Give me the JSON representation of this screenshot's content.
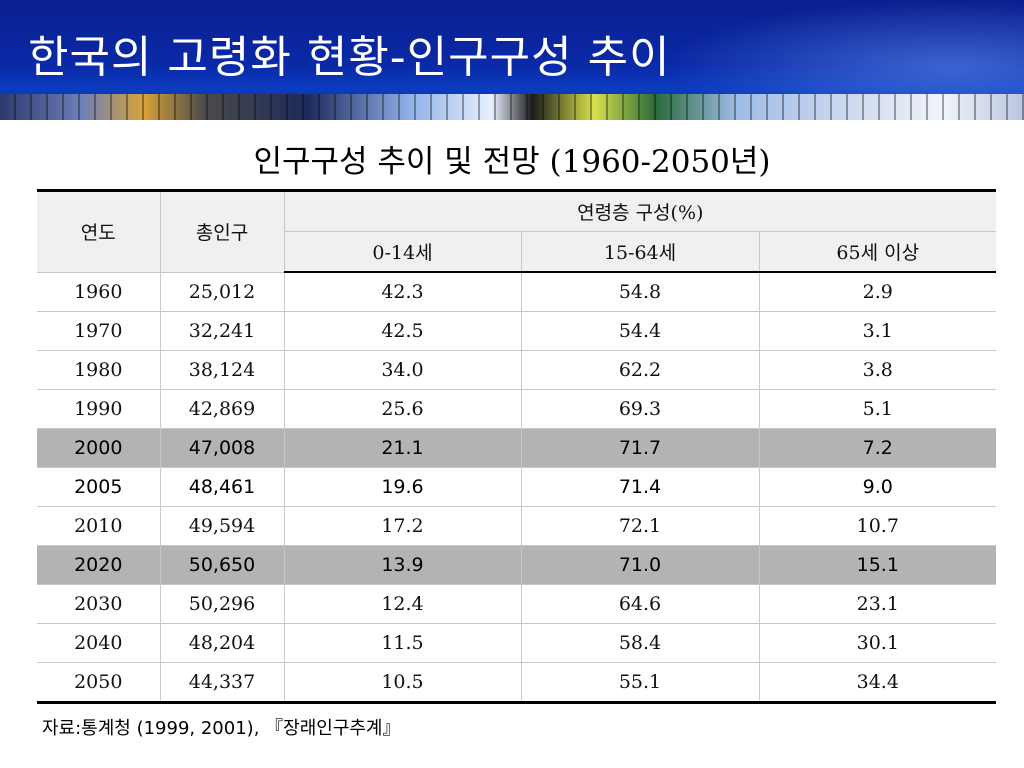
{
  "slide": {
    "title": "한국의 고령화 현황-인구구성 추이"
  },
  "table": {
    "title": "인구구성 추이 및 전망 (1960-2050년)",
    "headers": {
      "year": "연도",
      "total": "총인구",
      "age_group": "연령층 구성(%)",
      "age_0_14": "0-14세",
      "age_15_64": "15-64세",
      "age_65_plus": "65세 이상"
    },
    "rows": [
      {
        "year": "1960",
        "total": "25,012",
        "a": "42.3",
        "b": "54.8",
        "c": "2.9"
      },
      {
        "year": "1970",
        "total": "32,241",
        "a": "42.5",
        "b": "54.4",
        "c": "3.1"
      },
      {
        "year": "1980",
        "total": "38,124",
        "a": "34.0",
        "b": "62.2",
        "c": "3.8"
      },
      {
        "year": "1990",
        "total": "42,869",
        "a": "25.6",
        "b": "69.3",
        "c": "5.1"
      },
      {
        "year": "2000",
        "total": "47,008",
        "a": "21.1",
        "b": "71.7",
        "c": "7.2"
      },
      {
        "year": "2005",
        "total": "48,461",
        "a": "19.6",
        "b": "71.4",
        "c": "9.0"
      },
      {
        "year": "2010",
        "total": "49,594",
        "a": "17.2",
        "b": "72.1",
        "c": "10.7"
      },
      {
        "year": "2020",
        "total": "50,650",
        "a": "13.9",
        "b": "71.0",
        "c": "15.1"
      },
      {
        "year": "2030",
        "total": "50,296",
        "a": "12.4",
        "b": "64.6",
        "c": "23.1"
      },
      {
        "year": "2040",
        "total": "48,204",
        "a": "11.5",
        "b": "58.4",
        "c": "30.1"
      },
      {
        "year": "2050",
        "total": "44,337",
        "a": "10.5",
        "b": "55.1",
        "c": "34.4"
      }
    ]
  },
  "source": "자료:통계청 (1999, 2001), 『장래인구추계』",
  "colors": {
    "banner": "#0b2aa8",
    "highlight_row": "#b3b3b3",
    "header_bg": "#f0f0f0"
  }
}
